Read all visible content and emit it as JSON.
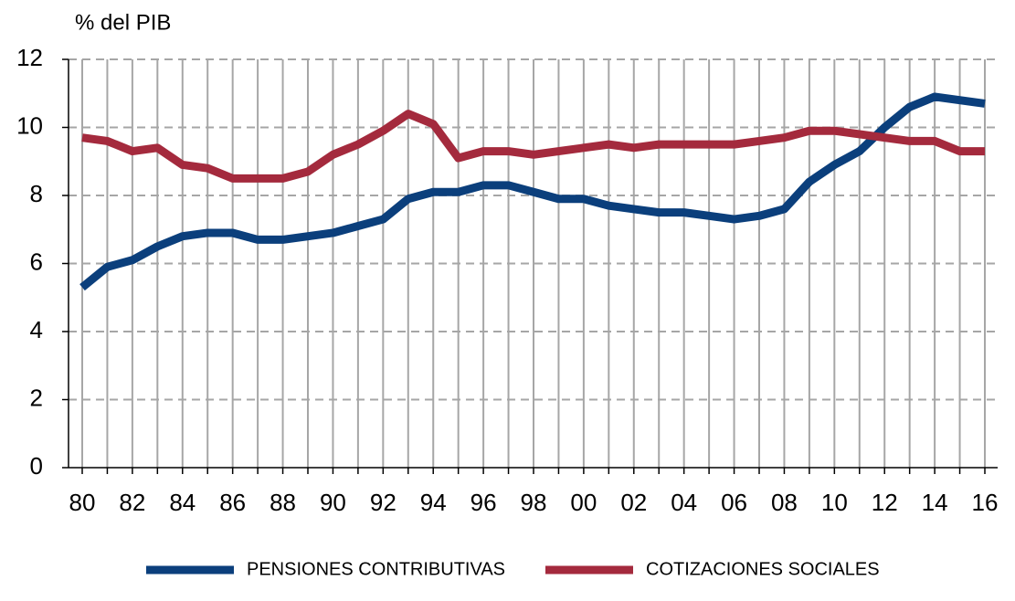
{
  "chart_data": {
    "type": "line",
    "ylabel": "% del PIB",
    "categories": [
      "80",
      null,
      "82",
      null,
      "84",
      null,
      "86",
      null,
      "88",
      null,
      "90",
      null,
      "92",
      null,
      "94",
      null,
      "96",
      null,
      "98",
      null,
      "00",
      null,
      "02",
      null,
      "04",
      null,
      "06",
      null,
      "08",
      null,
      "10",
      null,
      "12",
      null,
      "14",
      null,
      "16"
    ],
    "series": [
      {
        "name": "PENSIONES CONTRIBUTIVAS",
        "color": "#0b3f7c",
        "values": [
          5.3,
          5.9,
          6.1,
          6.5,
          6.8,
          6.9,
          6.9,
          6.7,
          6.7,
          6.8,
          6.9,
          7.1,
          7.3,
          7.9,
          8.1,
          8.1,
          8.3,
          8.3,
          8.1,
          7.9,
          7.9,
          7.7,
          7.6,
          7.5,
          7.5,
          7.4,
          7.3,
          7.4,
          7.6,
          8.4,
          8.9,
          9.3,
          10.0,
          10.6,
          10.9,
          10.8,
          10.7
        ]
      },
      {
        "name": "COTIZACIONES SOCIALES",
        "color": "#a42a3d",
        "values": [
          9.7,
          9.6,
          9.3,
          9.4,
          8.9,
          8.8,
          8.5,
          8.5,
          8.5,
          8.7,
          9.2,
          9.5,
          9.9,
          10.4,
          10.1,
          9.1,
          9.3,
          9.3,
          9.2,
          9.3,
          9.4,
          9.5,
          9.4,
          9.5,
          9.5,
          9.5,
          9.5,
          9.6,
          9.7,
          9.9,
          9.9,
          9.8,
          9.7,
          9.6,
          9.6,
          9.3,
          9.3
        ]
      }
    ],
    "ylim": [
      0,
      12
    ],
    "yticks": [
      0,
      2,
      4,
      6,
      8,
      10,
      12
    ],
    "grid": true,
    "legend": "bottom"
  }
}
